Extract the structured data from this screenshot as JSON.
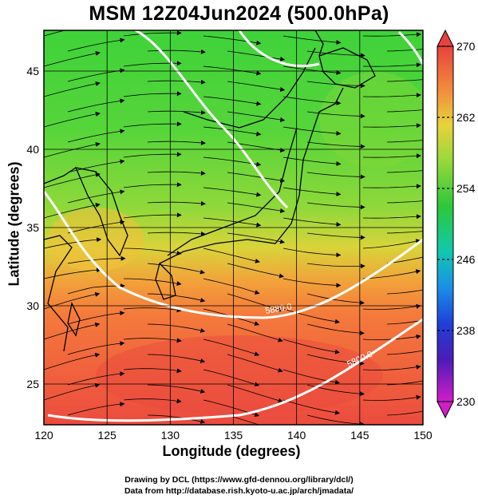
{
  "title": "MSM 12Z04Jun2024 (500.0hPa)",
  "xlabel": "Longitude (degrees)",
  "ylabel": "Latitude  (degrees)",
  "credit": {
    "line1": "Drawing by DCL (https://www.gfd-dennou.org/library/dcl/)",
    "line2": "Data from http://database.rish.kyoto-u.ac.jp/arch/jmadata/"
  },
  "map": {
    "lon_range": [
      120,
      150
    ],
    "lat_range": [
      22.4,
      47.6
    ],
    "x_ticks": [
      120,
      125,
      130,
      135,
      140,
      145,
      150
    ],
    "x_tick_labels": [
      "120",
      "125",
      "130",
      "135",
      "140",
      "145",
      "150"
    ],
    "y_ticks": [
      25,
      30,
      35,
      40,
      45
    ],
    "y_tick_labels": [
      "25",
      "30",
      "35",
      "40",
      "45"
    ],
    "grid": true,
    "field": "temperature",
    "contour_labels": [
      "5880.0",
      "5800.0"
    ]
  },
  "colorbar": {
    "min": 230,
    "max": 270,
    "labels": [
      "270",
      "262",
      "254",
      "246",
      "238",
      "230"
    ],
    "values": [
      270,
      262,
      254,
      246,
      238,
      230
    ]
  }
}
